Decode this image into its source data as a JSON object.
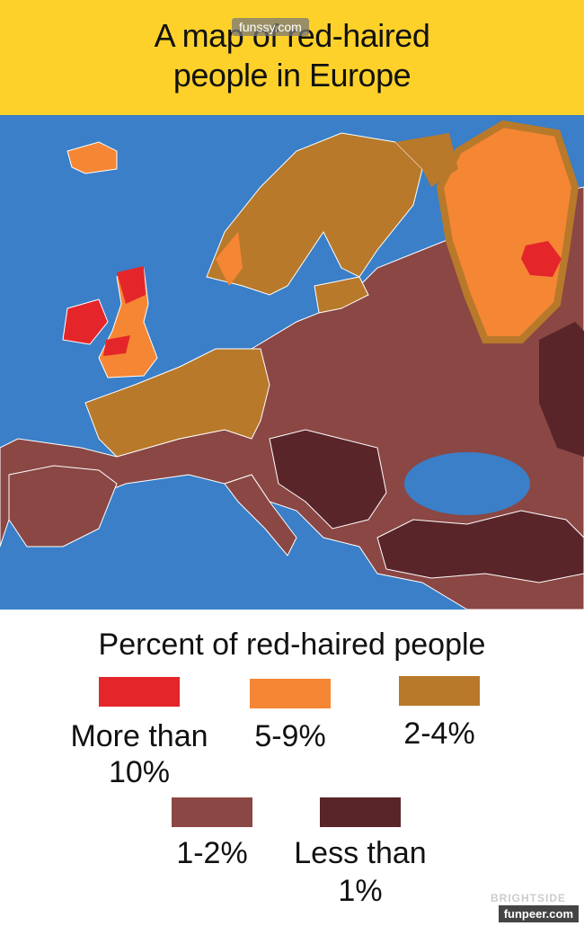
{
  "header": {
    "title": "A map of red-haired people in Europe",
    "watermark": "funssy.com"
  },
  "legend": {
    "title": "Percent of red-haired people",
    "items": [
      {
        "color": "#e4262a",
        "label": [
          "More than",
          "10%"
        ]
      },
      {
        "color": "#f58634",
        "label": [
          "5-9%"
        ]
      },
      {
        "color": "#b8792a",
        "label": [
          "2-4%"
        ]
      },
      {
        "color": "#8b4744",
        "label": [
          "1-2%"
        ]
      },
      {
        "color": "#5a2529",
        "label": [
          "Less than",
          "1%"
        ]
      }
    ]
  },
  "footer": {
    "watermark": "funpeer.com",
    "credit": "BRIGHTSIDE"
  }
}
